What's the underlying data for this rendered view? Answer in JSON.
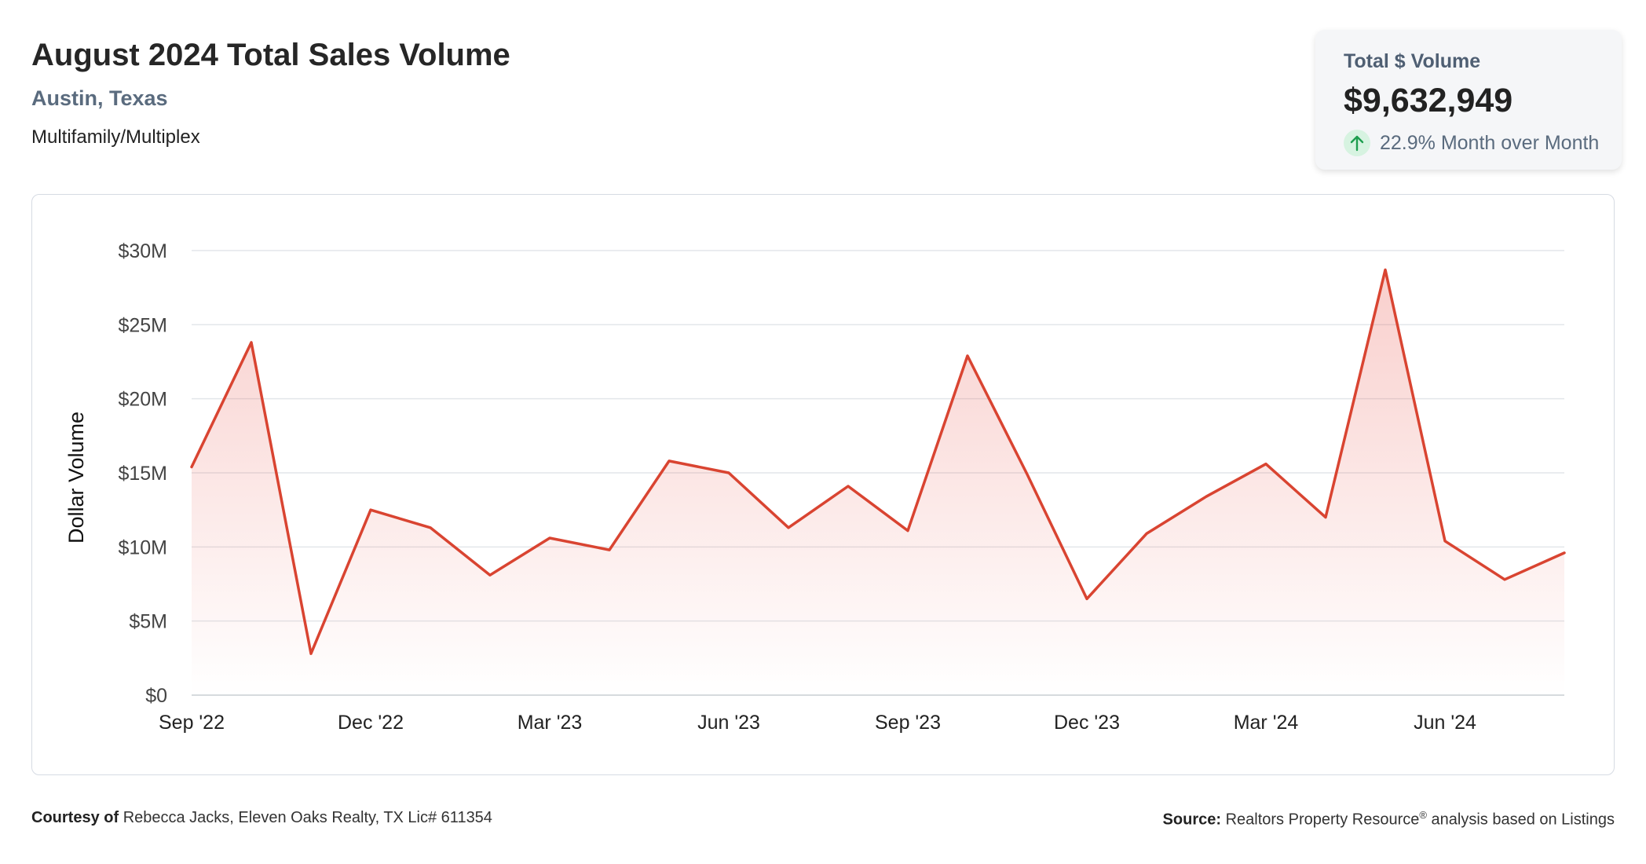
{
  "header": {
    "title": "August 2024 Total Sales Volume",
    "location": "Austin, Texas",
    "property_type": "Multifamily/Multiplex"
  },
  "kpi": {
    "label": "Total $ Volume",
    "value": "$9,632,949",
    "change": "22.9% Month over Month",
    "direction": "up",
    "icon": "arrow-up-icon",
    "icon_color": "#1e9e4f"
  },
  "chart_data": {
    "type": "area",
    "ylabel": "Dollar Volume",
    "xlabel": "",
    "title": "",
    "ylim": [
      0,
      30
    ],
    "y_unit": "millions USD",
    "y_ticks": [
      0,
      5,
      10,
      15,
      20,
      25,
      30
    ],
    "y_tick_labels": [
      "$0",
      "$5M",
      "$10M",
      "$15M",
      "$20M",
      "$25M",
      "$30M"
    ],
    "x": [
      "Sep '22",
      "Oct '22",
      "Nov '22",
      "Dec '22",
      "Jan '23",
      "Feb '23",
      "Mar '23",
      "Apr '23",
      "May '23",
      "Jun '23",
      "Jul '23",
      "Aug '23",
      "Sep '23",
      "Oct '23",
      "Nov '23",
      "Dec '23",
      "Jan '24",
      "Feb '24",
      "Mar '24",
      "Apr '24",
      "May '24",
      "Jun '24",
      "Jul '24",
      "Aug '24"
    ],
    "x_tick_labels": [
      "Sep '22",
      "Dec '22",
      "Mar '23",
      "Jun '23",
      "Sep '23",
      "Dec '23",
      "Mar '24",
      "Jun '24"
    ],
    "series": [
      {
        "values": [
          15.4,
          23.8,
          2.8,
          12.5,
          11.3,
          8.1,
          10.6,
          9.8,
          15.8,
          15.0,
          11.3,
          14.1,
          11.1,
          22.9,
          14.9,
          6.5,
          10.9,
          13.4,
          15.6,
          12.0,
          28.7,
          10.4,
          7.8,
          9.6
        ],
        "color": "#d94431"
      }
    ],
    "grid": true,
    "legend": "none"
  },
  "footer": {
    "courtesy_label": "Courtesy of",
    "courtesy_text": "Rebecca Jacks, Eleven Oaks Realty, TX Lic# 611354",
    "source_label": "Source:",
    "source_text_pre": "Realtors Property Resource",
    "source_sup": "®",
    "source_text_post": "analysis based on Listings"
  }
}
